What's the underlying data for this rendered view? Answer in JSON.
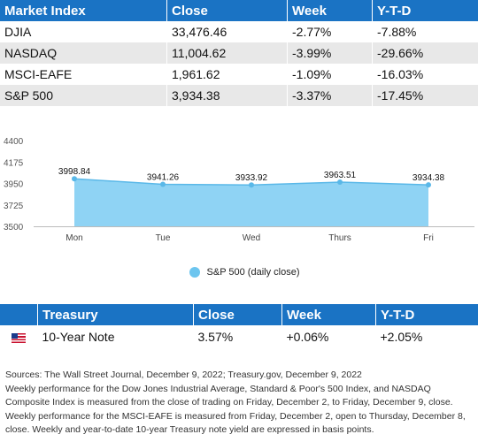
{
  "market_table": {
    "headers": [
      "Market Index",
      "Close",
      "Week",
      "Y-T-D"
    ],
    "rows": [
      {
        "index": "DJIA",
        "close": "33,476.46",
        "week": "-2.77%",
        "ytd": "-7.88%"
      },
      {
        "index": "NASDAQ",
        "close": "11,004.62",
        "week": "-3.99%",
        "ytd": "-29.66%"
      },
      {
        "index": "MSCI-EAFE",
        "close": "1,961.62",
        "week": "-1.09%",
        "ytd": "-16.03%"
      },
      {
        "index": "S&P 500",
        "close": "3,934.38",
        "week": "-3.37%",
        "ytd": "-17.45%"
      }
    ]
  },
  "chart_data": {
    "type": "area",
    "categories": [
      "Mon",
      "Tue",
      "Wed",
      "Thurs",
      "Fri"
    ],
    "series": [
      {
        "name": "S&P 500 (daily close)",
        "values": [
          3998.84,
          3941.26,
          3933.92,
          3963.51,
          3934.38
        ]
      }
    ],
    "data_labels": [
      "3998.84",
      "3941.26",
      "3933.92",
      "3963.51",
      "3934.38"
    ],
    "y_ticks": [
      "4400",
      "4175",
      "3950",
      "3725",
      "3500"
    ],
    "ylim": [
      3500,
      4400
    ],
    "grid": false,
    "legend_position": "bottom",
    "color": "#8fd3f4"
  },
  "legend": {
    "label": "S&P 500 (daily close)"
  },
  "treasury_table": {
    "headers": [
      "Treasury",
      "Close",
      "Week",
      "Y-T-D"
    ],
    "row": {
      "flag_icon": "us-flag-icon",
      "name": "10-Year Note",
      "close": "3.57%",
      "week": "+0.06%",
      "ytd": "+2.05%"
    }
  },
  "notes": [
    "Sources: The Wall Street Journal, December 9, 2022; Treasury.gov, December 9, 2022",
    "Weekly performance for the Dow Jones Industrial Average, Standard & Poor's 500 Index, and NASDAQ Composite Index is measured from the close of trading on Friday, December 2, to Friday, December 9, close. Weekly performance for the MSCI-EAFE is measured from Friday, December 2, open to Thursday, December 8, close. Weekly and year-to-date 10-year Treasury note yield are expressed in basis points."
  ]
}
